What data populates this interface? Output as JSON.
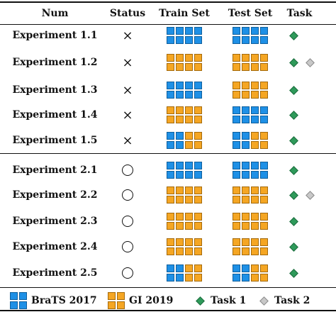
{
  "header": {
    "num": "Num",
    "status": "Status",
    "train": "Train Set",
    "test": "Test Set",
    "task": "Task"
  },
  "rows": [
    {
      "name": "Experiment 1.1",
      "status": "×",
      "status_kind": "cross",
      "train": "BBBBBBBB",
      "test": "BBBBBBBB",
      "tasks": [
        "task1"
      ]
    },
    {
      "name": "Experiment 1.2",
      "status": "×",
      "status_kind": "cross",
      "train": "GGGGGGGG",
      "test": "GGGGGGGG",
      "tasks": [
        "task1",
        "task2"
      ]
    },
    {
      "name": "Experiment 1.3",
      "status": "×",
      "status_kind": "cross",
      "train": "BBBBBBBB",
      "test": "GGGGGGGG",
      "tasks": [
        "task1"
      ]
    },
    {
      "name": "Experiment 1.4",
      "status": "×",
      "status_kind": "cross",
      "train": "GGGGGGGG",
      "test": "BBBBBBBB",
      "tasks": [
        "task1"
      ]
    },
    {
      "name": "Experiment 1.5",
      "status": "×",
      "status_kind": "cross",
      "train": "BBGGBBGG",
      "test": "BBGGBBGG",
      "tasks": [
        "task1"
      ]
    },
    {
      "name": "Experiment 2.1",
      "status": "",
      "status_kind": "circle",
      "train": "BBBBBBBB",
      "test": "BBBBBBBB",
      "tasks": [
        "task1"
      ]
    },
    {
      "name": "Experiment 2.2",
      "status": "",
      "status_kind": "circle",
      "train": "GGGGGGGG",
      "test": "GGGGGGGG",
      "tasks": [
        "task1",
        "task2"
      ]
    },
    {
      "name": "Experiment 2.3",
      "status": "",
      "status_kind": "circle",
      "train": "GGGGGGGG",
      "test": "GGGGGGGG",
      "tasks": [
        "task1"
      ]
    },
    {
      "name": "Experiment 2.4",
      "status": "",
      "status_kind": "circle",
      "train": "GGGGGGGG",
      "test": "GGGGGGGG",
      "tasks": [
        "task1"
      ]
    },
    {
      "name": "Experiment 2.5",
      "status": "",
      "status_kind": "circle",
      "train": "BBGGBBGG",
      "test": "BBGGBBGG",
      "tasks": [
        "task1"
      ]
    }
  ],
  "legend": {
    "brats": "BraTS 2017",
    "gi": "GI 2019",
    "task1": "Task 1",
    "task2": "Task 2"
  },
  "colors": {
    "brats": "#1e90e6",
    "gi": "#f5a623",
    "task1": "#2e9a5a",
    "task2": "#c8c8c8"
  }
}
